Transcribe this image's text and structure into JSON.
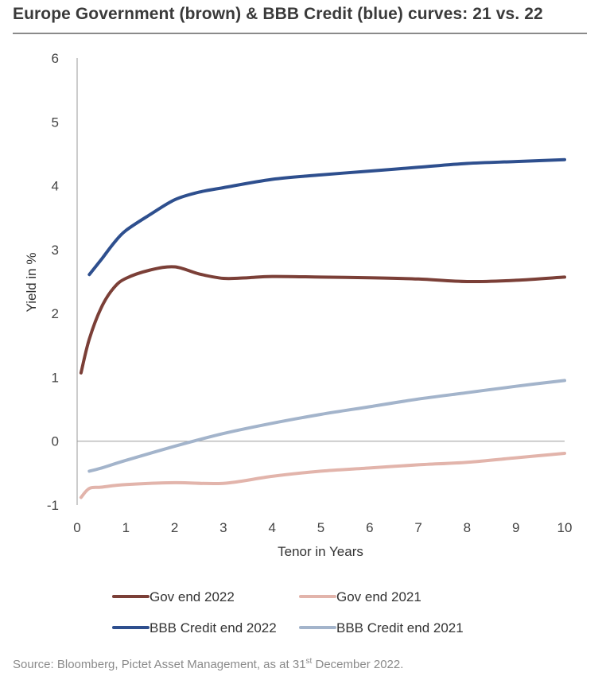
{
  "chart_data": {
    "type": "line",
    "title": "Europe Government (brown) & BBB Credit (blue) curves: 21 vs. 22",
    "xlabel": "Tenor in Years",
    "ylabel": "Yield in %",
    "xlim": [
      0,
      10
    ],
    "ylim": [
      -1,
      6
    ],
    "x_ticks": [
      0,
      1,
      2,
      3,
      4,
      5,
      6,
      7,
      8,
      9,
      10
    ],
    "y_ticks": [
      -1,
      0,
      1,
      2,
      3,
      4,
      5,
      6
    ],
    "grid": false,
    "zero_line": true,
    "legend_position": "bottom",
    "series": [
      {
        "name": "Gov end 2022",
        "color": "#7b3f37",
        "points": [
          [
            0.08,
            1.07
          ],
          [
            0.25,
            1.6
          ],
          [
            0.5,
            2.1
          ],
          [
            0.75,
            2.4
          ],
          [
            1,
            2.55
          ],
          [
            1.5,
            2.68
          ],
          [
            2,
            2.73
          ],
          [
            2.5,
            2.62
          ],
          [
            3,
            2.55
          ],
          [
            3.5,
            2.56
          ],
          [
            4,
            2.58
          ],
          [
            5,
            2.57
          ],
          [
            6,
            2.56
          ],
          [
            7,
            2.54
          ],
          [
            8,
            2.5
          ],
          [
            9,
            2.52
          ],
          [
            10,
            2.57
          ]
        ]
      },
      {
        "name": "Gov end 2021",
        "color": "#e2b4ab",
        "points": [
          [
            0.08,
            -0.88
          ],
          [
            0.25,
            -0.74
          ],
          [
            0.5,
            -0.72
          ],
          [
            1,
            -0.68
          ],
          [
            2,
            -0.65
          ],
          [
            3,
            -0.66
          ],
          [
            4,
            -0.55
          ],
          [
            5,
            -0.47
          ],
          [
            6,
            -0.42
          ],
          [
            7,
            -0.37
          ],
          [
            8,
            -0.33
          ],
          [
            9,
            -0.26
          ],
          [
            10,
            -0.19
          ]
        ]
      },
      {
        "name": "BBB Credit end 2022",
        "color": "#2e4f8e",
        "points": [
          [
            0.25,
            2.61
          ],
          [
            0.5,
            2.85
          ],
          [
            0.75,
            3.1
          ],
          [
            1,
            3.3
          ],
          [
            1.5,
            3.55
          ],
          [
            2,
            3.78
          ],
          [
            2.5,
            3.9
          ],
          [
            3,
            3.97
          ],
          [
            4,
            4.1
          ],
          [
            5,
            4.17
          ],
          [
            6,
            4.23
          ],
          [
            7,
            4.29
          ],
          [
            8,
            4.35
          ],
          [
            9,
            4.38
          ],
          [
            10,
            4.41
          ]
        ]
      },
      {
        "name": "BBB Credit end 2021",
        "color": "#a3b4cb",
        "points": [
          [
            0.25,
            -0.47
          ],
          [
            0.5,
            -0.42
          ],
          [
            1,
            -0.3
          ],
          [
            2,
            -0.08
          ],
          [
            3,
            0.12
          ],
          [
            4,
            0.28
          ],
          [
            5,
            0.42
          ],
          [
            6,
            0.54
          ],
          [
            7,
            0.66
          ],
          [
            8,
            0.76
          ],
          [
            9,
            0.86
          ],
          [
            10,
            0.95
          ]
        ]
      }
    ],
    "legend": [
      [
        "Gov end 2022",
        "Gov end 2021"
      ],
      [
        "BBB Credit end 2022",
        "BBB Credit end 2021"
      ]
    ]
  },
  "source": {
    "prefix": "Source: Bloomberg, Pictet Asset Management, as at 31",
    "superscript": "st",
    "suffix": " December 2022."
  }
}
